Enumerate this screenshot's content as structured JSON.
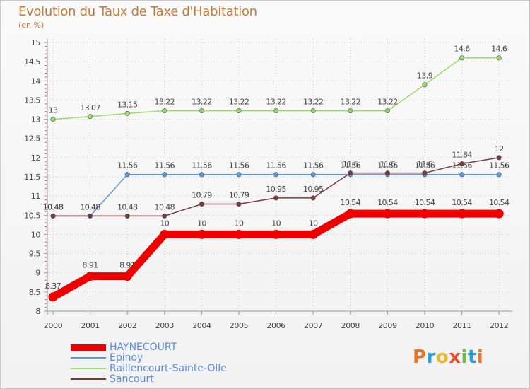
{
  "header": {
    "title": "Evolution du Taux de Taxe d'Habitation",
    "subtitle": "(en %)"
  },
  "logo": {
    "letters": [
      "P",
      "r",
      "o",
      "x",
      "i",
      "t",
      "i"
    ],
    "colors": [
      "#e8762a",
      "#2a9ad8",
      "#e8b92a",
      "#e84a2a",
      "#6cbf3a",
      "#2a9ad8",
      "#e8762a"
    ]
  },
  "chart_data": {
    "type": "line",
    "title": "Evolution du Taux de Taxe d'Habitation",
    "ylabel": "(en %)",
    "xlabel": "",
    "categories": [
      "2000",
      "2001",
      "2002",
      "2003",
      "2004",
      "2005",
      "2006",
      "2007",
      "2008",
      "2009",
      "2010",
      "2011",
      "2012"
    ],
    "ylim": [
      8,
      15
    ],
    "yticks": [
      8,
      8.5,
      9,
      9.5,
      10,
      10.5,
      11,
      11.5,
      12,
      12.5,
      13,
      13.5,
      14,
      14.5,
      15
    ],
    "grid": true,
    "legend_position": "bottom-left",
    "series": [
      {
        "name": "HAYNECOURT",
        "color": "#ee0000",
        "values": [
          8.37,
          8.91,
          8.91,
          10,
          10,
          10,
          10,
          10,
          10.54,
          10.54,
          10.54,
          10.54,
          10.54
        ],
        "labels": [
          "8.37",
          "8.91",
          "8.91",
          "10",
          "10",
          "10",
          "10",
          "10",
          "10.54",
          "10.54",
          "10.54",
          "10.54",
          "10.54"
        ]
      },
      {
        "name": "Epinoy",
        "color": "#5b9bd5",
        "values": [
          10.48,
          10.48,
          11.56,
          11.56,
          11.56,
          11.56,
          11.56,
          11.56,
          11.56,
          11.56,
          11.56,
          11.56,
          11.56
        ],
        "labels": [
          "10.48",
          "10.48",
          "11.56",
          "11.56",
          "11.56",
          "11.56",
          "11.56",
          "11.56",
          "11.56",
          "11.56",
          "11.56",
          "11.56",
          "11.56"
        ]
      },
      {
        "name": "Raillencourt-Sainte-Olle",
        "color": "#99dd66",
        "values": [
          13,
          13.07,
          13.15,
          13.22,
          13.22,
          13.22,
          13.22,
          13.22,
          13.22,
          13.22,
          13.9,
          14.6,
          14.6
        ],
        "labels": [
          "13",
          "13.07",
          "13.15",
          "13.22",
          "13.22",
          "13.22",
          "13.22",
          "13.22",
          "13.22",
          "13.22",
          "13.9",
          "14.6",
          "14.6"
        ]
      },
      {
        "name": "Sancourt",
        "color": "#7a3a3a",
        "values": [
          10.48,
          10.48,
          10.48,
          10.48,
          10.79,
          10.79,
          10.95,
          10.95,
          11.6,
          11.6,
          11.6,
          11.84,
          12
        ],
        "labels": [
          "10.48",
          "10.48",
          "10.48",
          "10.48",
          "10.79",
          "10.79",
          "10.95",
          "10.95",
          "11.6",
          "11.6",
          "11.6",
          "11.84",
          "12"
        ]
      }
    ]
  }
}
